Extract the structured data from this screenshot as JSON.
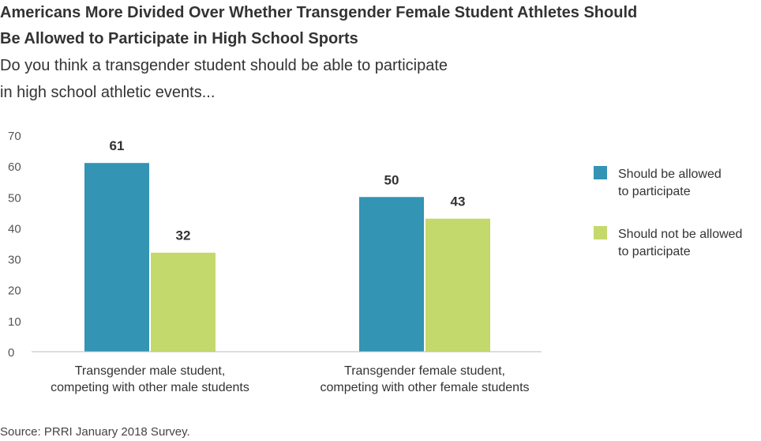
{
  "title_lines": [
    "Americans More Divided Over Whether Transgender Female Student Athletes Should",
    "Be Allowed to Participate in High School Sports"
  ],
  "subtitle_lines": [
    "Do you think a transgender student should be able to participate",
    "in high school athletic events..."
  ],
  "source": "Source: PRRI January 2018 Survey.",
  "chart_data": {
    "type": "bar",
    "categories": [
      [
        "Transgender male student,",
        "competing with other male students"
      ],
      [
        "Transgender female student,",
        "competing with other female students"
      ]
    ],
    "series": [
      {
        "name": [
          "Should be allowed",
          "to participate"
        ],
        "color": "#3394b4",
        "values": [
          61,
          50
        ]
      },
      {
        "name": [
          "Should not be allowed",
          "to participate"
        ],
        "color": "#c3d96b",
        "values": [
          32,
          43
        ]
      }
    ],
    "yticks": [
      0,
      10,
      20,
      30,
      40,
      50,
      60,
      70
    ],
    "ylim": [
      0,
      70
    ],
    "legend_position": "right",
    "grid": false
  }
}
